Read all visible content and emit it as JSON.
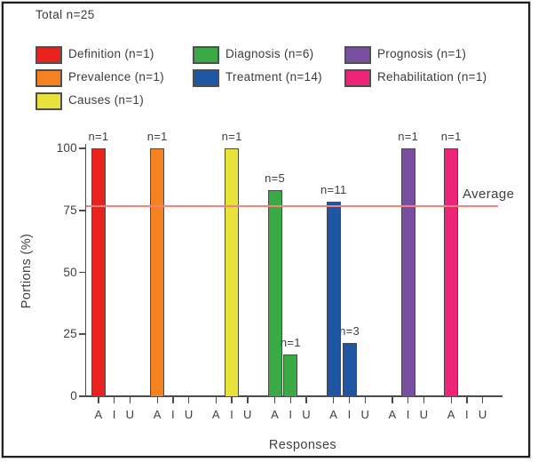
{
  "figure": {
    "title": "Total n=25",
    "legend": {
      "items": [
        {
          "label": "Definition (n=1)",
          "color": "#e8231d",
          "col": 0,
          "row": 0
        },
        {
          "label": "Prevalence (n=1)",
          "color": "#f58220",
          "col": 0,
          "row": 1
        },
        {
          "label": "Causes (n=1)",
          "color": "#e8e33b",
          "col": 0,
          "row": 2
        },
        {
          "label": "Diagnosis (n=6)",
          "color": "#3aaa44",
          "col": 1,
          "row": 0
        },
        {
          "label": "Treatment (n=14)",
          "color": "#1e56a4",
          "col": 1,
          "row": 1
        },
        {
          "label": "Prognosis (n=1)",
          "color": "#7a4ea0",
          "col": 2,
          "row": 0
        },
        {
          "label": "Rehabilitation (n=1)",
          "color": "#ee2478",
          "col": 2,
          "row": 1
        }
      ]
    }
  },
  "chart_data": {
    "type": "bar",
    "title": "Total n=25",
    "xlabel": "Responses",
    "ylabel": "Portions (%)",
    "ylim": [
      0,
      100
    ],
    "yticks": [
      0,
      25,
      50,
      75,
      100
    ],
    "group_ticks": [
      "A",
      "I",
      "U"
    ],
    "groups": [
      {
        "name": "Definition",
        "n": 1,
        "color": "#e8231d",
        "bars": [
          {
            "tick": "A",
            "value": 100,
            "label": "n=1"
          }
        ]
      },
      {
        "name": "Prevalence",
        "n": 1,
        "color": "#f58220",
        "bars": [
          {
            "tick": "A",
            "value": 100,
            "label": "n=1"
          }
        ]
      },
      {
        "name": "Causes",
        "n": 1,
        "color": "#e8e33b",
        "bars": [
          {
            "tick": "I",
            "value": 100,
            "label": "n=1"
          }
        ]
      },
      {
        "name": "Diagnosis",
        "n": 6,
        "color": "#3aaa44",
        "bars": [
          {
            "tick": "A",
            "value": 83.3,
            "label": "n=5"
          },
          {
            "tick": "I",
            "value": 16.7,
            "label": "n=1"
          }
        ]
      },
      {
        "name": "Treatment",
        "n": 14,
        "color": "#1e56a4",
        "bars": [
          {
            "tick": "A",
            "value": 78.6,
            "label": "n=11"
          },
          {
            "tick": "I",
            "value": 21.4,
            "label": "n=3"
          }
        ]
      },
      {
        "name": "Prognosis",
        "n": 1,
        "color": "#7a4ea0",
        "bars": [
          {
            "tick": "I",
            "value": 100,
            "label": "n=1"
          }
        ]
      },
      {
        "name": "Rehabilitation",
        "n": 1,
        "color": "#ee2478",
        "bars": [
          {
            "tick": "A",
            "value": 100,
            "label": "n=1"
          }
        ]
      }
    ],
    "average_line": {
      "value": 76.7,
      "label": "Average",
      "color": "#f4837d"
    },
    "legend_position": "top",
    "grid": false
  }
}
